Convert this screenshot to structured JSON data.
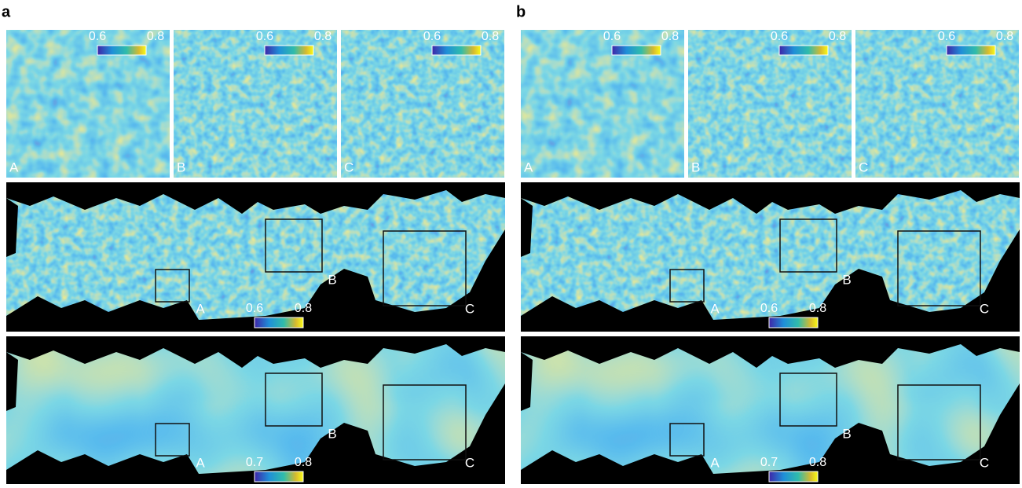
{
  "panels": [
    {
      "label": "a",
      "tiles": [
        {
          "label": "A",
          "colorbar": [
            "0.6",
            "0.8"
          ]
        },
        {
          "label": "B",
          "colorbar": [
            "0.6",
            "0.8"
          ]
        },
        {
          "label": "C",
          "colorbar": [
            "0.6",
            "0.8"
          ]
        }
      ],
      "maps": [
        {
          "colorbar": [
            "0.6",
            "0.8"
          ],
          "boxes": [
            "A",
            "B",
            "C"
          ]
        },
        {
          "colorbar": [
            "0.7",
            "0.8"
          ],
          "boxes": [
            "A",
            "B",
            "C"
          ]
        }
      ]
    },
    {
      "label": "b",
      "tiles": [
        {
          "label": "A",
          "colorbar": [
            "0.6",
            "0.8"
          ]
        },
        {
          "label": "B",
          "colorbar": [
            "0.6",
            "0.8"
          ]
        },
        {
          "label": "C",
          "colorbar": [
            "0.6",
            "0.8"
          ]
        }
      ],
      "maps": [
        {
          "colorbar": [
            "0.6",
            "0.8"
          ],
          "boxes": [
            "A",
            "B",
            "C"
          ]
        },
        {
          "colorbar": [
            "0.7",
            "0.8"
          ],
          "boxes": [
            "A",
            "B",
            "C"
          ]
        }
      ]
    }
  ]
}
